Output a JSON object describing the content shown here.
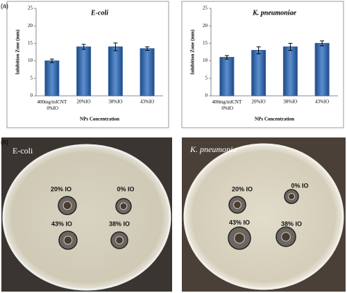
{
  "panel_labels": [
    "(a)",
    "(b)"
  ],
  "chart_data": [
    {
      "type": "bar",
      "title": "E-coli",
      "ylabel": "Inhibition Zone (mm)",
      "xlabel": "NPs Concentration",
      "categories": [
        "400mg/mlCNT 0%IO",
        "20%IO",
        "38%IO",
        "43%IO"
      ],
      "values": [
        10,
        14,
        14,
        13.5
      ],
      "errors": [
        0.5,
        0.7,
        1.1,
        0.5
      ],
      "color": "#3163a3",
      "ylim": [
        0,
        25
      ],
      "yticks": [
        0,
        5,
        10,
        15,
        20,
        25
      ]
    },
    {
      "type": "bar",
      "title": "K. pneumoniae",
      "ylabel": "Inhibition Zone (mm)",
      "xlabel": "NPs Concentration",
      "categories": [
        "400mg/mlCNT 0%IO",
        "20%IO",
        "38%IO",
        "43%IO"
      ],
      "values": [
        11,
        13,
        14,
        15
      ],
      "errors": [
        0.5,
        1.0,
        1.0,
        0.7
      ],
      "color": "#3163a3",
      "ylim": [
        0,
        25
      ],
      "yticks": [
        0,
        5,
        10,
        15,
        20,
        25
      ]
    }
  ],
  "photos": [
    {
      "title": "E-coli",
      "labels": [
        "20% IO",
        "0% IO",
        "43% IO",
        "38% IO"
      ]
    },
    {
      "title": "K. pneumonia",
      "labels": [
        "20% IO",
        "0% IO",
        "43% IO",
        "38% IO"
      ]
    }
  ]
}
